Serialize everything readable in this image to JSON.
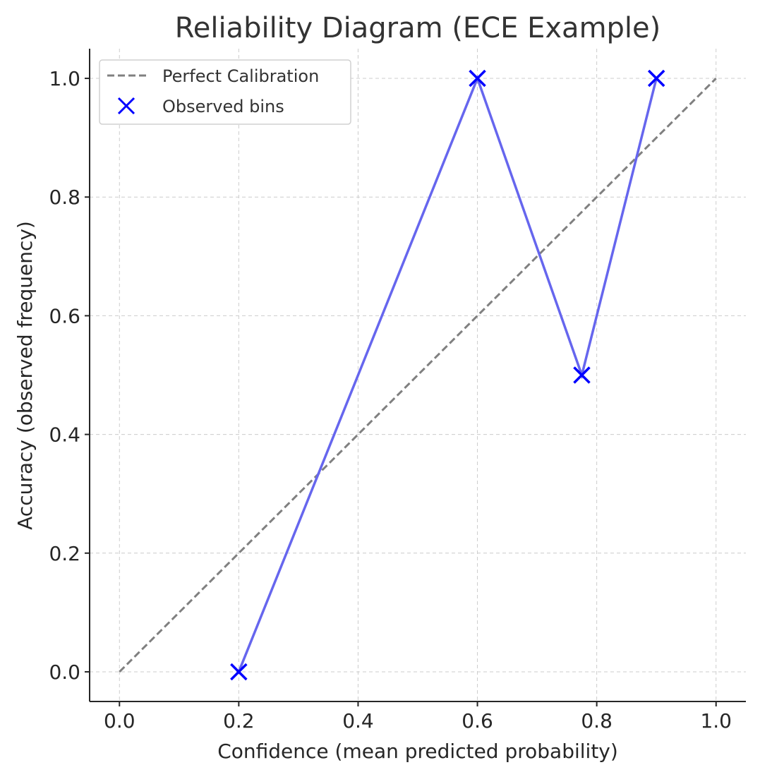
{
  "chart_data": {
    "type": "line",
    "title": "Reliability Diagram (ECE Example)",
    "xlabel": "Confidence (mean predicted probability)",
    "ylabel": "Accuracy (observed frequency)",
    "xlim": [
      -0.05,
      1.05
    ],
    "ylim": [
      -0.05,
      1.05
    ],
    "xticks": [
      0.0,
      0.2,
      0.4,
      0.6,
      0.8,
      1.0
    ],
    "yticks": [
      0.0,
      0.2,
      0.4,
      0.6,
      0.8,
      1.0
    ],
    "xtick_labels": [
      "0.0",
      "0.2",
      "0.4",
      "0.6",
      "0.8",
      "1.0"
    ],
    "ytick_labels": [
      "0.0",
      "0.2",
      "0.4",
      "0.6",
      "0.8",
      "1.0"
    ],
    "grid": true,
    "legend_position": "upper-left",
    "series": [
      {
        "name": "Perfect Calibration",
        "style": "dashed",
        "color": "#808080",
        "x": [
          0.0,
          1.0
        ],
        "y": [
          0.0,
          1.0
        ]
      },
      {
        "name": "Observed bins",
        "style": "line-with-x-markers",
        "color": "#0000ff",
        "line_color": "#6666ee",
        "x": [
          0.2,
          0.6,
          0.775,
          0.9
        ],
        "y": [
          0.0,
          1.0,
          0.5,
          1.0
        ]
      }
    ]
  }
}
